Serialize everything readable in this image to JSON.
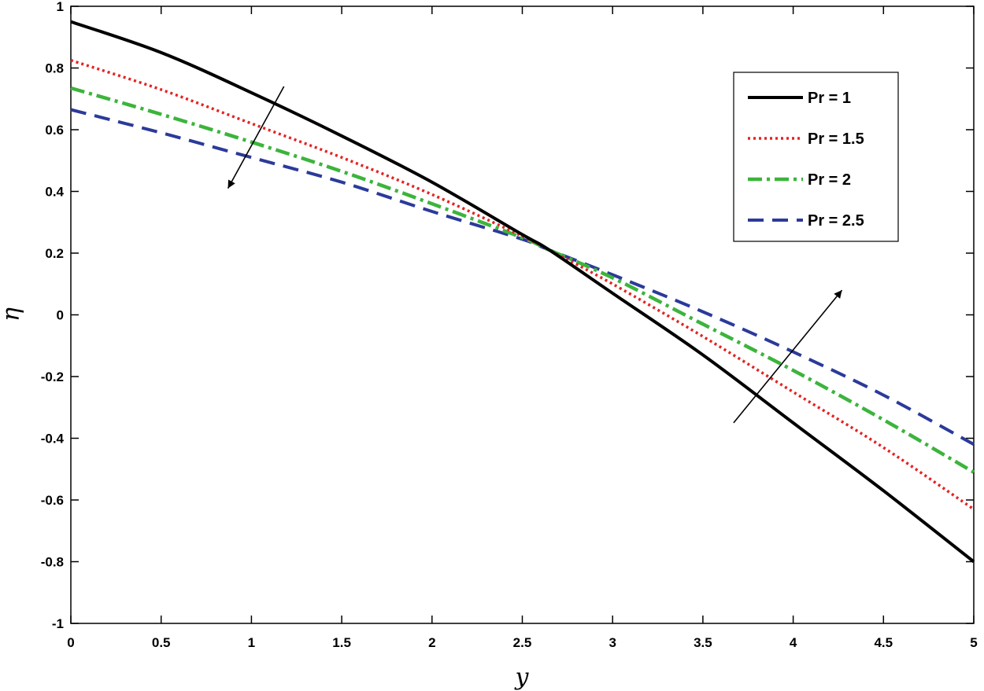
{
  "chart_data": {
    "type": "line",
    "xlabel": "y",
    "ylabel": "η",
    "xlim": [
      0,
      5
    ],
    "ylim": [
      -1,
      1
    ],
    "xticks": [
      "0",
      "0.5",
      "1",
      "1.5",
      "2",
      "2.5",
      "3",
      "3.5",
      "4",
      "4.5",
      "5"
    ],
    "yticks": [
      "-1",
      "-0.8",
      "-0.6",
      "-0.4",
      "-0.2",
      "0",
      "0.2",
      "0.4",
      "0.6",
      "0.8",
      "1"
    ],
    "grid": false,
    "legend_position": "top-right",
    "x": [
      0,
      0.5,
      1,
      1.5,
      2,
      2.5,
      2.65,
      3,
      3.5,
      4,
      4.5,
      5
    ],
    "series": [
      {
        "name": "Pr = 1",
        "color": "#000000",
        "style": "solid",
        "values": [
          0.95,
          0.85,
          0.72,
          0.58,
          0.43,
          0.26,
          0.21,
          0.07,
          -0.13,
          -0.35,
          -0.57,
          -0.8
        ]
      },
      {
        "name": "Pr = 1.5",
        "color": "#e52222",
        "style": "dotted",
        "values": [
          0.825,
          0.73,
          0.62,
          0.51,
          0.39,
          0.255,
          0.21,
          0.1,
          -0.07,
          -0.25,
          -0.43,
          -0.63
        ]
      },
      {
        "name": "Pr = 2",
        "color": "#3cb43c",
        "style": "dashdot",
        "values": [
          0.735,
          0.65,
          0.56,
          0.465,
          0.36,
          0.25,
          0.21,
          0.12,
          -0.03,
          -0.18,
          -0.34,
          -0.51
        ]
      },
      {
        "name": "Pr = 2.5",
        "color": "#2b3a9a",
        "style": "dashed",
        "values": [
          0.665,
          0.59,
          0.51,
          0.43,
          0.335,
          0.245,
          0.21,
          0.13,
          0.01,
          -0.12,
          -0.26,
          -0.42
        ]
      }
    ],
    "annotations": [
      {
        "type": "arrow",
        "from": [
          1.18,
          0.74
        ],
        "to": [
          0.87,
          0.41
        ]
      },
      {
        "type": "arrow",
        "from": [
          3.67,
          -0.35
        ],
        "to": [
          4.27,
          0.08
        ]
      }
    ]
  }
}
